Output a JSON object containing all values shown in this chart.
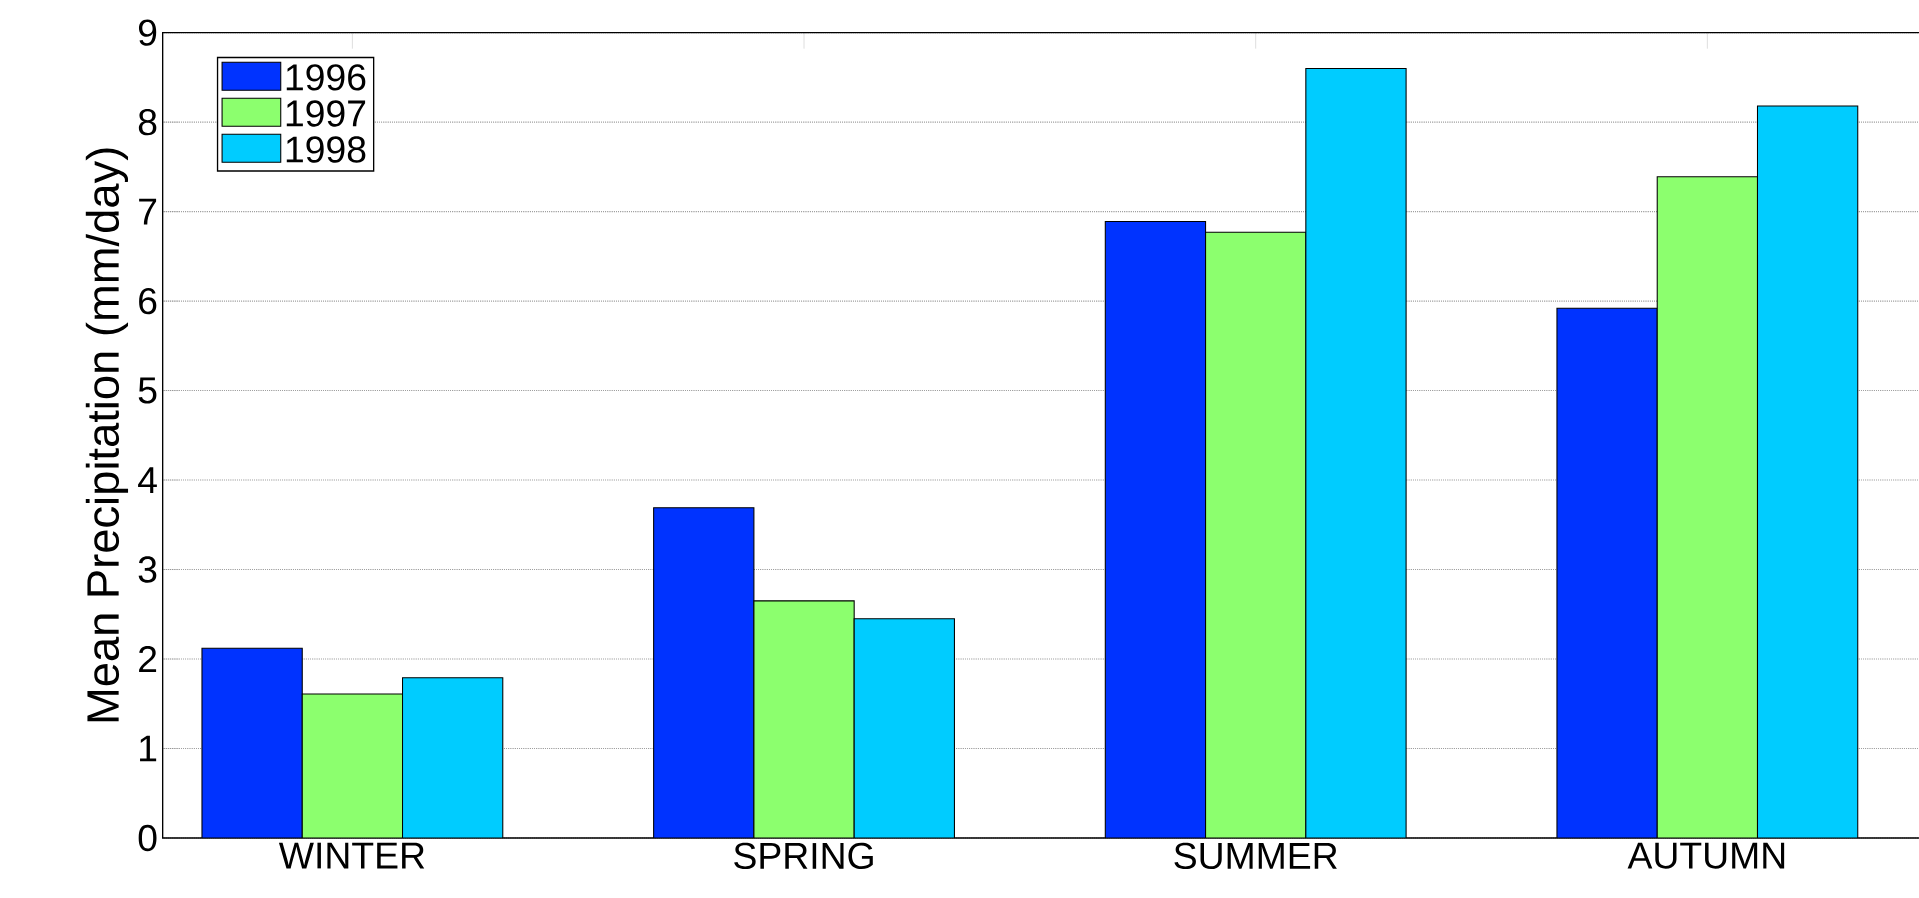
{
  "chart_data": {
    "type": "bar",
    "ylabel": "Mean Precipitation (mm/day)",
    "categories": [
      "WINTER",
      "SPRING",
      "SUMMER",
      "AUTUMN"
    ],
    "series": [
      {
        "name": "1996",
        "color": "#0033ff",
        "values": [
          2.12,
          3.69,
          6.89,
          5.92
        ]
      },
      {
        "name": "1997",
        "color": "#8cff6e",
        "values": [
          1.61,
          2.65,
          6.77,
          7.39
        ]
      },
      {
        "name": "1998",
        "color": "#00ccff",
        "values": [
          1.79,
          2.45,
          8.6,
          8.18
        ]
      }
    ],
    "ylim": [
      0,
      9
    ],
    "yticks": [
      0,
      1,
      2,
      3,
      4,
      5,
      6,
      7,
      8,
      9
    ],
    "grid": "y",
    "legend": "top left"
  }
}
